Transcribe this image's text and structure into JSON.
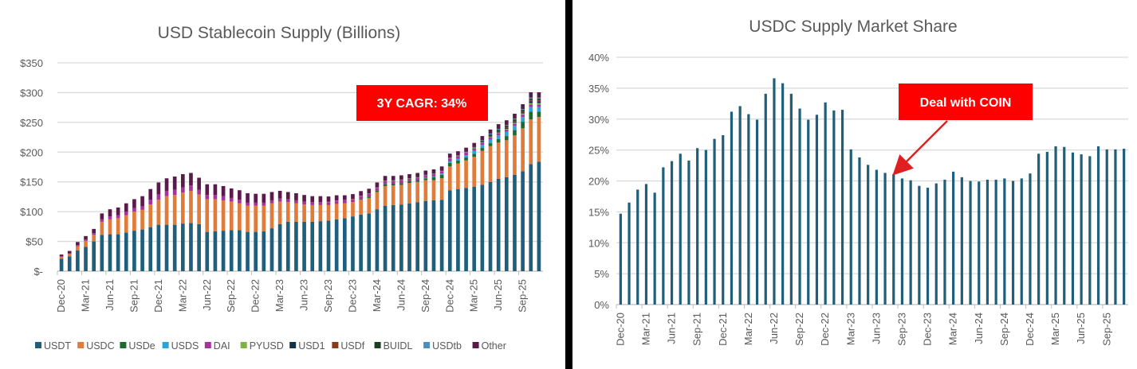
{
  "chart_data": [
    {
      "type": "bar",
      "stacked": true,
      "title": "USD Stablecoin Supply (Billions)",
      "xlabel": "",
      "ylabel": "",
      "ylim": [
        0,
        350
      ],
      "yticks": [
        "$-",
        "$50",
        "$100",
        "$150",
        "$200",
        "$250",
        "$300",
        "$350"
      ],
      "ytick_values": [
        0,
        50,
        100,
        150,
        200,
        250,
        300,
        350
      ],
      "xtick_labels": [
        "Dec-20",
        "Mar-21",
        "Jun-21",
        "Sep-21",
        "Dec-21",
        "Mar-22",
        "Jun-22",
        "Sep-22",
        "Dec-22",
        "Mar-23",
        "Jun-23",
        "Sep-23",
        "Dec-23",
        "Mar-24",
        "Jun-24",
        "Sep-24",
        "Dec-24",
        "Mar-25",
        "Jun-25",
        "Sep-25"
      ],
      "categories_start": "Dec-20",
      "categories_end": "Nov-25",
      "grid": true,
      "legend_position": "bottom",
      "annotation": "3Y CAGR: 34%",
      "annotation_color": "#ff0000",
      "series": [
        {
          "name": "USDT",
          "color": "#1f5f7c",
          "values": [
            21,
            25,
            35,
            41,
            50,
            61,
            62,
            62,
            65,
            68,
            70,
            74,
            78,
            78,
            78,
            80,
            81,
            79,
            66,
            67,
            68,
            69,
            69,
            66,
            66,
            67,
            72,
            79,
            83,
            83,
            83,
            83,
            84,
            85,
            87,
            89,
            92,
            95,
            97,
            104,
            110,
            111,
            112,
            114,
            116,
            118,
            119,
            120,
            136,
            138,
            140,
            142,
            145,
            150,
            155,
            158,
            162,
            168,
            180,
            184
          ]
        },
        {
          "name": "USDC",
          "color": "#e07b39",
          "values": [
            3,
            4,
            7,
            10,
            11,
            22,
            25,
            27,
            29,
            32,
            33,
            38,
            42,
            48,
            50,
            52,
            54,
            50,
            55,
            54,
            51,
            48,
            45,
            44,
            44,
            43,
            42,
            38,
            33,
            31,
            29,
            28,
            27,
            26,
            26,
            25,
            24,
            25,
            26,
            29,
            33,
            33,
            33,
            34,
            34,
            35,
            34,
            36,
            40,
            43,
            46,
            50,
            57,
            60,
            61,
            62,
            66,
            72,
            75,
            75
          ]
        },
        {
          "name": "USDe",
          "color": "#1e6b2f",
          "values": [
            0,
            0,
            0,
            0,
            0,
            0,
            0,
            0,
            0,
            0,
            0,
            0,
            0,
            0,
            0,
            0,
            0,
            0,
            0,
            0,
            0,
            0,
            0,
            0,
            0,
            0,
            0,
            0,
            0,
            0,
            0,
            0,
            0,
            0,
            0,
            0,
            0,
            1,
            2,
            2,
            3,
            3,
            3,
            3,
            3,
            3,
            5,
            6,
            6,
            5,
            5,
            5,
            5,
            5,
            6,
            7,
            9,
            11,
            13,
            9
          ]
        },
        {
          "name": "USDS",
          "color": "#2aa3d8",
          "values": [
            0,
            0,
            0,
            0,
            0,
            0,
            0,
            0,
            0,
            0,
            0,
            0,
            0,
            0,
            0,
            0,
            0,
            0,
            0,
            0,
            0,
            0,
            0,
            0,
            0,
            0,
            0,
            0,
            0,
            0,
            0,
            0,
            0,
            0,
            0,
            0,
            0,
            0,
            0,
            0,
            0,
            0,
            0,
            0,
            0,
            1,
            1,
            2,
            3,
            3,
            4,
            5,
            5,
            6,
            6,
            7,
            7,
            8,
            8,
            8
          ]
        },
        {
          "name": "DAI",
          "color": "#a8329c",
          "values": [
            1,
            1,
            2,
            2,
            3,
            4,
            5,
            5,
            6,
            6,
            6,
            8,
            9,
            9,
            9,
            9,
            9,
            8,
            7,
            7,
            7,
            6,
            6,
            5,
            5,
            5,
            5,
            5,
            5,
            5,
            5,
            5,
            5,
            5,
            5,
            5,
            5,
            5,
            5,
            5,
            5,
            5,
            5,
            4,
            4,
            4,
            4,
            4,
            4,
            4,
            4,
            4,
            4,
            4,
            4,
            4,
            4,
            4,
            4,
            4
          ]
        },
        {
          "name": "PYUSD",
          "color": "#7cb342",
          "values": [
            0,
            0,
            0,
            0,
            0,
            0,
            0,
            0,
            0,
            0,
            0,
            0,
            0,
            0,
            0,
            0,
            0,
            0,
            0,
            0,
            0,
            0,
            0,
            0,
            0,
            0,
            0,
            0,
            0,
            0,
            0,
            0,
            0,
            0.5,
            0.5,
            0.5,
            0.5,
            0.5,
            0.5,
            0.5,
            0.5,
            0.5,
            0.5,
            0.5,
            0.5,
            0.5,
            0.5,
            0.5,
            0.5,
            0.5,
            0.5,
            0.5,
            0.5,
            1,
            1,
            1,
            1.5,
            2,
            2.5,
            2.5
          ]
        },
        {
          "name": "USD1",
          "color": "#12304a",
          "values": [
            0,
            0,
            0,
            0,
            0,
            0,
            0,
            0,
            0,
            0,
            0,
            0,
            0,
            0,
            0,
            0,
            0,
            0,
            0,
            0,
            0,
            0,
            0,
            0,
            0,
            0,
            0,
            0,
            0,
            0,
            0,
            0,
            0,
            0,
            0,
            0,
            0,
            0,
            0,
            0,
            0,
            0,
            0,
            0,
            0,
            0,
            0,
            0,
            0,
            0,
            0,
            0,
            1,
            2,
            2,
            2,
            2,
            2,
            3,
            3
          ]
        },
        {
          "name": "USDf",
          "color": "#8c3b1a",
          "values": [
            0,
            0,
            0,
            0,
            0,
            0,
            0,
            0,
            0,
            0,
            0,
            0,
            0,
            0,
            0,
            0,
            0,
            0,
            0,
            0,
            0,
            0,
            0,
            0,
            0,
            0,
            0,
            0,
            0,
            0,
            0,
            0,
            0,
            0,
            0,
            0,
            0,
            0,
            0,
            0,
            0,
            0,
            0,
            0,
            0,
            0,
            0,
            0,
            0,
            0,
            0,
            0,
            0,
            0,
            0.5,
            1,
            1,
            1.5,
            2,
            2
          ]
        },
        {
          "name": "BUIDL",
          "color": "#1d3f22",
          "values": [
            0,
            0,
            0,
            0,
            0,
            0,
            0,
            0,
            0,
            0,
            0,
            0,
            0,
            0,
            0,
            0,
            0,
            0,
            0,
            0,
            0,
            0,
            0,
            0,
            0,
            0,
            0,
            0,
            0,
            0,
            0,
            0,
            0,
            0,
            0,
            0,
            0,
            0,
            0,
            0.5,
            0.5,
            0.5,
            0.5,
            0.5,
            0.5,
            0.5,
            0.5,
            0.5,
            0.5,
            0.5,
            0.5,
            1,
            1.5,
            2,
            2.5,
            2.5,
            2.5,
            2.5,
            2.5,
            2.5
          ]
        },
        {
          "name": "USDtb",
          "color": "#4a8fc0",
          "values": [
            0,
            0,
            0,
            0,
            0,
            0,
            0,
            0,
            0,
            0,
            0,
            0,
            0,
            0,
            0,
            0,
            0,
            0,
            0,
            0,
            0,
            0,
            0,
            0,
            0,
            0,
            0,
            0,
            0,
            0,
            0,
            0,
            0,
            0,
            0,
            0,
            0,
            0,
            0,
            0,
            0,
            0,
            0,
            0,
            0,
            0,
            0,
            0,
            0.5,
            0.5,
            0.5,
            1,
            1,
            1,
            1,
            1,
            1.5,
            1.5,
            1.5,
            1.5
          ]
        },
        {
          "name": "Other",
          "color": "#5a1b4b",
          "values": [
            3,
            4,
            5,
            6,
            7,
            10,
            12,
            13,
            14,
            15,
            17,
            18,
            20,
            21,
            22,
            22,
            21,
            20,
            18,
            18,
            17,
            16,
            16,
            16,
            15,
            15,
            14,
            13,
            12,
            12,
            11,
            10,
            10,
            9,
            9,
            8,
            8,
            8,
            8,
            8,
            8,
            7,
            7,
            7,
            7,
            7,
            7,
            7,
            7,
            7,
            7,
            7,
            7,
            7,
            8,
            8,
            8,
            8,
            9,
            9
          ]
        }
      ]
    },
    {
      "type": "bar",
      "title": "USDC Supply Market Share",
      "xlabel": "",
      "ylabel": "",
      "ylim": [
        0,
        40
      ],
      "yticks": [
        "0%",
        "5%",
        "10%",
        "15%",
        "20%",
        "25%",
        "30%",
        "35%",
        "40%"
      ],
      "ytick_values": [
        0,
        5,
        10,
        15,
        20,
        25,
        30,
        35,
        40
      ],
      "xtick_labels": [
        "Dec-20",
        "Mar-21",
        "Jun-21",
        "Sep-21",
        "Dec-21",
        "Mar-22",
        "Jun-22",
        "Sep-22",
        "Dec-22",
        "Mar-23",
        "Jun-23",
        "Sep-23",
        "Dec-23",
        "Mar-24",
        "Jun-24",
        "Sep-24",
        "Dec-24",
        "Mar-25",
        "Jun-25",
        "Sep-25"
      ],
      "categories_start": "Dec-20",
      "categories_end": "Nov-25",
      "grid": true,
      "color": "#1f5f7a",
      "annotation": "Deal with COIN",
      "annotation_color": "#ff0000",
      "annotation_target_index": 32,
      "values": [
        14.7,
        16.5,
        18.6,
        19.5,
        18.1,
        22.2,
        23.2,
        24.4,
        23.3,
        25.3,
        25.0,
        26.8,
        27.4,
        31.2,
        32.1,
        30.8,
        29.9,
        34.1,
        36.6,
        35.8,
        34.1,
        31.7,
        29.9,
        30.7,
        32.7,
        31.4,
        31.5,
        25.1,
        23.8,
        22.6,
        21.8,
        21.3,
        21.1,
        20.4,
        20.1,
        19.2,
        18.9,
        19.6,
        20.2,
        21.5,
        20.6,
        20.0,
        19.9,
        20.2,
        20.2,
        20.4,
        20.0,
        20.4,
        21.2,
        24.4,
        24.7,
        25.6,
        25.5,
        24.6,
        24.3,
        24.0,
        25.6,
        25.1,
        25.1,
        25.2
      ]
    }
  ]
}
